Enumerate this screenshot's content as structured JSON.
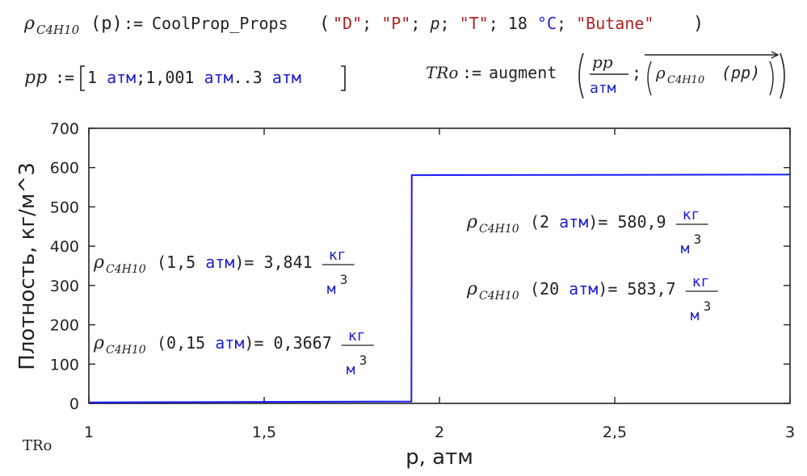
{
  "colors": {
    "blue": "#1f1fd6",
    "red": "#b22222",
    "black": "#222222",
    "line": "#1a1aff"
  },
  "equations": {
    "rho_def": {
      "lhs_sym": "ρ",
      "lhs_sub": "C4H10",
      "lhs_arg": "(p)",
      "assign": ":=",
      "func": "CoolProp_Props",
      "args": [
        {
          "t": "\"D\"",
          "c": "red"
        },
        {
          "t": "; ",
          "c": "black"
        },
        {
          "t": "\"P\"",
          "c": "red"
        },
        {
          "t": "; ",
          "c": "black"
        },
        {
          "t": "p",
          "c": "black",
          "i": true
        },
        {
          "t": "; ",
          "c": "black"
        },
        {
          "t": "\"T\"",
          "c": "red"
        },
        {
          "t": "; ",
          "c": "black"
        },
        {
          "t": "18 ",
          "c": "black"
        },
        {
          "t": "°C",
          "c": "blue"
        },
        {
          "t": "; ",
          "c": "black"
        },
        {
          "t": "\"Butane\"",
          "c": "red"
        }
      ]
    },
    "pp_def": {
      "lhs": "pp",
      "assign": ":=",
      "parts": [
        {
          "t": "1 ",
          "c": "black"
        },
        {
          "t": "атм",
          "c": "blue"
        },
        {
          "t": ";",
          "c": "black"
        },
        {
          "t": "1,001 ",
          "c": "black"
        },
        {
          "t": "атм",
          "c": "blue"
        },
        {
          "t": "..",
          "c": "black"
        },
        {
          "t": "3 ",
          "c": "black"
        },
        {
          "t": "атм",
          "c": "blue"
        }
      ]
    },
    "tro_def": {
      "lhs": "TRo",
      "assign": ":=",
      "func": "augment",
      "frac_num": "pp",
      "frac_den": "атм",
      "sep": ";",
      "vec_sym": "ρ",
      "vec_sub": "C4H10",
      "vec_arg": "(pp)"
    }
  },
  "annotations": [
    {
      "sub": "C4H10",
      "arg_num": "1,5",
      "arg_unit": "атм",
      "result": "= 3,841",
      "unit_num": "кг",
      "unit_den_base": "м",
      "unit_den_exp": "3"
    },
    {
      "sub": "C4H10",
      "arg_num": "0,15",
      "arg_unit": "атм",
      "result": "= 0,3667",
      "unit_num": "кг",
      "unit_den_base": "м",
      "unit_den_exp": "3"
    },
    {
      "sub": "C4H10",
      "arg_num": "2",
      "arg_unit": "атм",
      "result": "= 580,9",
      "unit_num": "кг",
      "unit_den_base": "м",
      "unit_den_exp": "3"
    },
    {
      "sub": "C4H10",
      "arg_num": "20",
      "arg_unit": "атм",
      "result": "= 583,7",
      "unit_num": "кг",
      "unit_den_base": "м",
      "unit_den_exp": "3"
    }
  ],
  "trace_label": "TRo",
  "chart_data": {
    "type": "line",
    "xlabel": "p, атм",
    "ylabel": "Плотность, кг/м^3",
    "xlim": [
      1,
      3
    ],
    "ylim": [
      0,
      700
    ],
    "x_ticks": [
      1,
      1.5,
      2,
      2.5,
      3
    ],
    "x_tick_labels": [
      "1",
      "1,5",
      "2",
      "2,5",
      "3"
    ],
    "y_ticks": [
      0,
      100,
      200,
      300,
      400,
      500,
      600,
      700
    ],
    "y_tick_labels": [
      "0",
      "100",
      "200",
      "300",
      "400",
      "500",
      "600",
      "700"
    ],
    "grid": false,
    "series": [
      {
        "x": [
          1,
          1.2,
          1.4,
          1.6,
          1.8,
          1.92,
          1.921,
          2.0,
          2.5,
          3.0
        ],
        "y": [
          2.56,
          3.08,
          3.59,
          4.12,
          4.66,
          4.99,
          580.7,
          580.9,
          581.5,
          582.1
        ]
      }
    ]
  }
}
